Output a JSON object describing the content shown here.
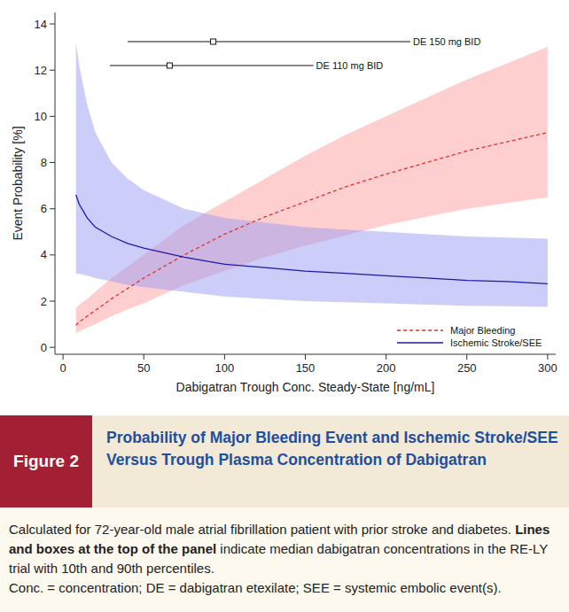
{
  "chart_data": {
    "type": "line",
    "x_label": "Dabigatran Trough Conc. Steady-State [ng/mL]",
    "y_label": "Event Probability [%]",
    "xlim": [
      -5,
      305
    ],
    "xticks": [
      0,
      50,
      100,
      150,
      200,
      250,
      300
    ],
    "ylim": [
      -0.3,
      14.5
    ],
    "yticks": [
      0,
      2,
      4,
      6,
      8,
      10,
      12,
      14
    ],
    "grid": false,
    "legend": "lower right",
    "x": [
      8,
      10,
      15,
      20,
      30,
      40,
      50,
      75,
      100,
      125,
      150,
      175,
      200,
      225,
      250,
      275,
      300
    ],
    "series": [
      {
        "name": "Major Bleeding",
        "color": "#e0302f",
        "line_style": "dashed",
        "values": [
          0.95,
          1.1,
          1.35,
          1.6,
          2.1,
          2.55,
          3.0,
          4.0,
          4.9,
          5.65,
          6.3,
          6.95,
          7.5,
          8.0,
          8.5,
          8.9,
          9.3
        ],
        "lower": [
          0.6,
          0.7,
          0.85,
          1.0,
          1.35,
          1.65,
          1.9,
          2.7,
          3.3,
          3.9,
          4.4,
          4.85,
          5.3,
          5.65,
          6.0,
          6.25,
          6.5
        ],
        "upper": [
          1.7,
          1.85,
          2.1,
          2.4,
          3.0,
          3.5,
          4.0,
          5.3,
          6.3,
          7.3,
          8.3,
          9.2,
          10.0,
          10.8,
          11.6,
          12.3,
          13.0
        ]
      },
      {
        "name": "Ischemic Stroke/SEE",
        "color": "#1a1aa8",
        "line_style": "solid",
        "values": [
          6.6,
          6.2,
          5.6,
          5.2,
          4.8,
          4.5,
          4.3,
          3.9,
          3.6,
          3.45,
          3.3,
          3.2,
          3.1,
          3.0,
          2.9,
          2.85,
          2.75
        ],
        "lower": [
          3.2,
          3.18,
          3.1,
          3.0,
          2.85,
          2.7,
          2.6,
          2.4,
          2.2,
          2.1,
          2.0,
          1.95,
          1.9,
          1.85,
          1.8,
          1.78,
          1.75
        ],
        "upper": [
          13.2,
          12.2,
          10.5,
          9.3,
          8.0,
          7.3,
          6.8,
          6.0,
          5.6,
          5.4,
          5.2,
          5.1,
          5.0,
          4.9,
          4.8,
          4.75,
          4.7
        ]
      }
    ],
    "ranges": [
      {
        "label": "DE 150 mg BID",
        "p10": 40,
        "median": 93,
        "p90": 215
      },
      {
        "label": "DE 110 mg BID",
        "p10": 29,
        "median": 66,
        "p90": 155
      }
    ]
  },
  "figure": {
    "label": "Figure 2",
    "title": "Probability of Major Bleeding Event and Ischemic Stroke/SEE Versus Trough Plasma Concentration of Dabigatran",
    "note_start": "Calculated for 72-year-old male atrial fibrillation patient with prior stroke and diabetes. ",
    "note_bold": "Lines and boxes at the top of the panel",
    "note_end": " indicate median dabigatran concentrations in the RE-LY trial with 10th and 90th percentiles.",
    "abbreviations": "Conc. = concentration; DE = dabigatran etexilate; SEE = systemic embolic event(s)."
  }
}
